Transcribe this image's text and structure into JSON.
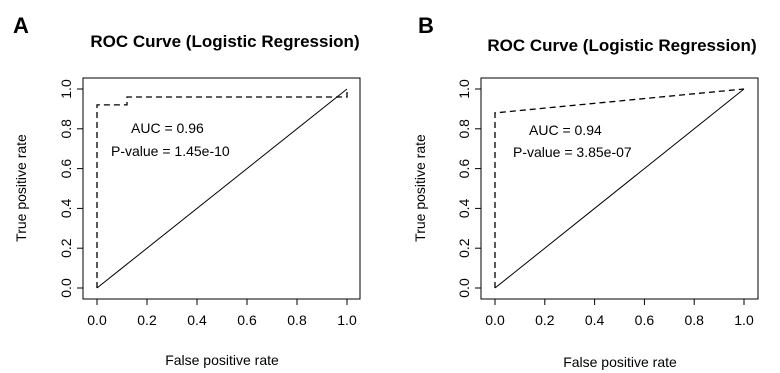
{
  "chart_data": [
    {
      "type": "line",
      "panel": "A",
      "title": "ROC Curve (Logistic Regression)",
      "xlabel": "False positive rate",
      "ylabel": "True positive rate",
      "xlim": [
        0,
        1
      ],
      "ylim": [
        0,
        1
      ],
      "xticks": [
        "0.0",
        "0.2",
        "0.4",
        "0.6",
        "0.8",
        "1.0"
      ],
      "yticks": [
        "0.0",
        "0.2",
        "0.4",
        "0.6",
        "0.8",
        "1.0"
      ],
      "annotations": [
        "AUC = 0.96",
        "P-value =  1.45e-10"
      ],
      "series": [
        {
          "style": "dashed",
          "x": [
            0,
            0,
            0.12,
            0.12,
            1.0,
            1.0
          ],
          "y": [
            0,
            0.92,
            0.92,
            0.96,
            0.96,
            1.0
          ]
        },
        {
          "style": "solid",
          "x": [
            0,
            1
          ],
          "y": [
            0,
            1
          ]
        }
      ]
    },
    {
      "type": "line",
      "panel": "B",
      "title": "ROC Curve (Logistic Regression)",
      "xlabel": "False positive rate",
      "ylabel": "True positive rate",
      "xlim": [
        0,
        1
      ],
      "ylim": [
        0,
        1
      ],
      "xticks": [
        "0.0",
        "0.2",
        "0.4",
        "0.6",
        "0.8",
        "1.0"
      ],
      "yticks": [
        "0.0",
        "0.2",
        "0.4",
        "0.6",
        "0.8",
        "1.0"
      ],
      "annotations": [
        "AUC = 0.94",
        "P-value =  3.85e-07"
      ],
      "series": [
        {
          "style": "dashed",
          "x": [
            0,
            0,
            1.0
          ],
          "y": [
            0,
            0.88,
            1.0
          ]
        },
        {
          "style": "solid",
          "x": [
            0,
            1
          ],
          "y": [
            0,
            1
          ]
        }
      ]
    }
  ]
}
